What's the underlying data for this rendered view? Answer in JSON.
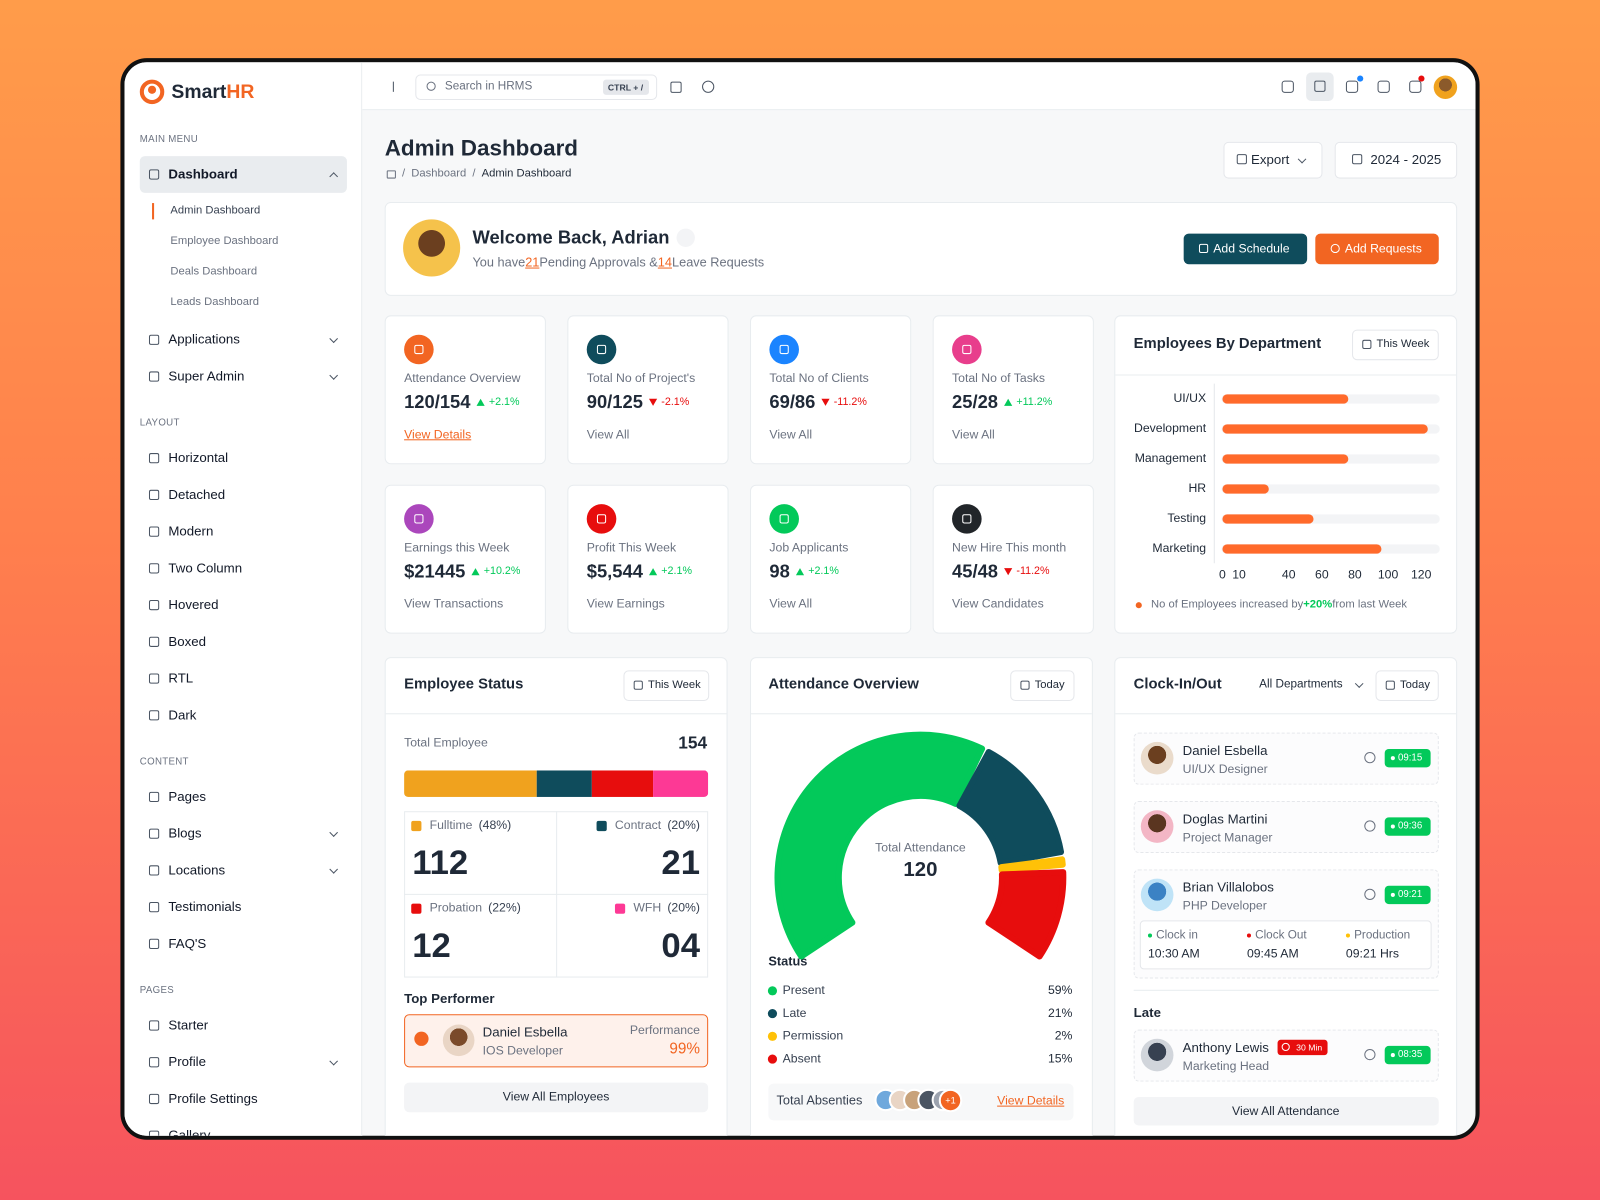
{
  "brand": {
    "name": "Smart",
    "accent": "HR"
  },
  "sidebar": {
    "sections": [
      {
        "heading": "MAIN MENU",
        "items": [
          {
            "label": "Dashboard",
            "active": true,
            "expanded": true,
            "children": [
              "Admin Dashboard",
              "Employee Dashboard",
              "Deals Dashboard",
              "Leads Dashboard"
            ]
          },
          {
            "label": "Applications",
            "submenu": true
          },
          {
            "label": "Super Admin",
            "submenu": true
          }
        ]
      },
      {
        "heading": "LAYOUT",
        "items": [
          {
            "label": "Horizontal"
          },
          {
            "label": "Detached"
          },
          {
            "label": "Modern"
          },
          {
            "label": "Two Column"
          },
          {
            "label": "Hovered"
          },
          {
            "label": "Boxed"
          },
          {
            "label": "RTL"
          },
          {
            "label": "Dark"
          }
        ]
      },
      {
        "heading": "CONTENT",
        "items": [
          {
            "label": "Pages"
          },
          {
            "label": "Blogs",
            "submenu": true
          },
          {
            "label": "Locations",
            "submenu": true
          },
          {
            "label": "Testimonials"
          },
          {
            "label": "FAQ'S"
          }
        ]
      },
      {
        "heading": "PAGES",
        "items": [
          {
            "label": "Starter"
          },
          {
            "label": "Profile",
            "submenu": true
          },
          {
            "label": "Profile Settings"
          },
          {
            "label": "Gallery"
          }
        ]
      }
    ]
  },
  "header": {
    "search_placeholder": "Search in HRMS",
    "shortcut": "CTRL + /"
  },
  "page": {
    "title": "Admin Dashboard",
    "breadcrumb_separator": "/",
    "breadcrumb": [
      "Dashboard",
      "Admin Dashboard"
    ],
    "export": "Export",
    "period": "2024 - 2025"
  },
  "welcome": {
    "title": "Welcome Back, Adrian",
    "message": [
      "You have ",
      "21",
      " Pending Approvals & ",
      "14",
      " Leave Requests"
    ],
    "buttons": [
      "Add Schedule",
      "Add Requests"
    ]
  },
  "stats": [
    {
      "label": "Attendance Overview",
      "value": "120/154",
      "change": "+2.1%",
      "trend": "up",
      "link": "View Details",
      "highlight": true,
      "color": "#F26522"
    },
    {
      "label": "Total No of Project's",
      "value": "90/125",
      "change": "-2.1%",
      "trend": "down",
      "link": "View All",
      "color": "#0F4C5C"
    },
    {
      "label": "Total No of Clients",
      "value": "69/86",
      "change": "-11.2%",
      "trend": "down",
      "link": "View All",
      "color": "#1B84FF"
    },
    {
      "label": "Total No of Tasks",
      "value": "25/28",
      "change": "+11.2%",
      "trend": "up",
      "link": "View All",
      "color": "#E83E8C"
    },
    {
      "label": "Earnings this Week",
      "value": "$21445",
      "change": "+10.2%",
      "trend": "up",
      "link": "View Transactions",
      "color": "#AB47BC"
    },
    {
      "label": "Profit This Week",
      "value": "$5,544",
      "change": "+2.1%",
      "trend": "up",
      "link": "View Earnings",
      "color": "#E70D0D"
    },
    {
      "label": "Job Applicants",
      "value": "98",
      "change": "+2.1%",
      "trend": "up",
      "link": "View All",
      "color": "#03C95A"
    },
    {
      "label": "New Hire This month",
      "value": "45/48",
      "change": "-11.2%",
      "trend": "down",
      "link": "View Candidates",
      "color": "#212529"
    }
  ],
  "department": {
    "title": "Employees By Department",
    "filter": "This Week",
    "note": [
      "No of Employees increased by ",
      "+20%",
      " from last Week"
    ]
  },
  "employee_status": {
    "title": "Employee Status",
    "filter": "This Week",
    "total_label": "Total Employee",
    "total": 154,
    "groups": [
      {
        "name": "Fulltime",
        "percent": 48,
        "percent_label": "(48%)",
        "count": "112",
        "color": "#F0A21E"
      },
      {
        "name": "Contract",
        "percent": 20,
        "percent_label": "(20%)",
        "count": "21",
        "color": "#0F4C5C"
      },
      {
        "name": "Probation",
        "percent": 22,
        "percent_label": "(22%)",
        "count": "12",
        "color": "#E70D0D"
      },
      {
        "name": "WFH",
        "percent": 20,
        "percent_label": "(20%)",
        "count": "04",
        "color": "#FD3995"
      }
    ],
    "top_heading": "Top Performer",
    "performer": {
      "name": "Daniel Esbella",
      "role": "IOS Developer",
      "metric_label": "Performance",
      "metric": "99%"
    },
    "button": "View All Employees"
  },
  "attendance": {
    "title": "Attendance Overview",
    "filter": "Today",
    "center_label": "Total Attendance",
    "center_value": 120,
    "status_heading": "Status",
    "absent_label": "Total Absenties",
    "more": "+1",
    "link": "View Details"
  },
  "clock": {
    "title": "Clock-In/Out",
    "department": "All Departments",
    "filter": "Today",
    "entries": [
      {
        "name": "Daniel Esbella",
        "role": "UI/UX Designer",
        "time": "09:15"
      },
      {
        "name": "Doglas Martini",
        "role": "Project Manager",
        "time": "09:36"
      },
      {
        "name": "Brian Villalobos",
        "role": "PHP Developer",
        "time": "09:21",
        "details": [
          {
            "label": "Clock in",
            "value": "10:30 AM",
            "color": "#03C95A"
          },
          {
            "label": "Clock Out",
            "value": "09:45 AM",
            "color": "#E70D0D"
          },
          {
            "label": "Production",
            "value": "09:21 Hrs",
            "color": "#FFC107"
          }
        ]
      }
    ],
    "late_heading": "Late",
    "late": [
      {
        "name": "Anthony Lewis",
        "role": "Marketing Head",
        "badge": "30 Min",
        "time": "08:35"
      }
    ],
    "button": "View All Attendance"
  },
  "chart_data": [
    {
      "type": "bar",
      "orientation": "horizontal",
      "categories": [
        "UI/UX",
        "Development",
        "Management",
        "HR",
        "Testing",
        "Marketing"
      ],
      "values": [
        76,
        124,
        76,
        28,
        55,
        96
      ],
      "color": "#FF6A2B",
      "xlim": [
        0,
        130
      ],
      "xticks": [
        0,
        10,
        40,
        60,
        80,
        100,
        120
      ],
      "grid": false
    },
    {
      "type": "gauge",
      "categories": [
        "Present",
        "Late",
        "Permission",
        "Absent"
      ],
      "values": [
        59,
        21,
        2,
        15
      ],
      "value_labels": [
        "59%",
        "21%",
        "2%",
        "15%"
      ],
      "colors": [
        "#03C95A",
        "#0F4C5C",
        "#FFC107",
        "#E70D0D"
      ]
    }
  ]
}
